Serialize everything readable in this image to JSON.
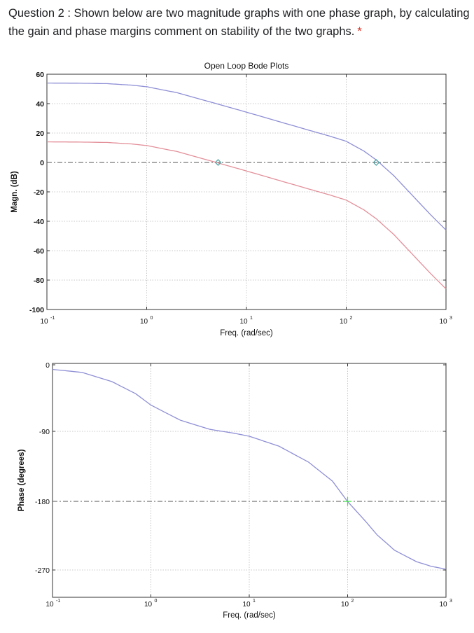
{
  "question": {
    "text": "Question 2 : Shown below are two magnitude graphs with one phase graph, by calculating the gain and phase margins comment on stability of the two graphs.",
    "required_mark": "*"
  },
  "colors": {
    "blue_curve": "#8f8fd6",
    "red_curve": "#e3909a",
    "marker": "#4aa0a0",
    "green_marker": "#33ee33",
    "grid": "#c8c8c8"
  },
  "chart_data": [
    {
      "type": "line",
      "title": "Open Loop Bode Plots",
      "xlabel": "Freq. (rad/sec)",
      "ylabel": "Magn. (dB)",
      "xscale": "log",
      "xlim": [
        0.1,
        1000
      ],
      "ylim": [
        -100,
        60
      ],
      "xticks": [
        {
          "value": 0.1,
          "base": "10",
          "exp": "-1"
        },
        {
          "value": 1,
          "base": "10",
          "exp": "0"
        },
        {
          "value": 10,
          "base": "10",
          "exp": "1"
        },
        {
          "value": 100,
          "base": "10",
          "exp": "2"
        },
        {
          "value": 1000,
          "base": "10",
          "exp": "3"
        }
      ],
      "yticks": [
        "60",
        "40",
        "20",
        "0",
        "-20",
        "-40",
        "-60",
        "-80",
        "-100"
      ],
      "ytick_values": [
        60,
        40,
        20,
        0,
        -20,
        -40,
        -60,
        -80,
        -100
      ],
      "grid": true,
      "reference_line": 0,
      "series": [
        {
          "color_key": "blue_curve",
          "x": [
            0.1,
            0.2,
            0.4,
            0.7,
            1,
            2,
            4,
            7,
            10,
            20,
            40,
            70,
            100,
            150,
            200,
            300,
            500,
            700,
            1000
          ],
          "y": [
            54,
            53.9,
            53.6,
            52.6,
            51.5,
            47.5,
            41.8,
            37.2,
            34.2,
            28.3,
            22.4,
            17.7,
            14.4,
            7.8,
            1.7,
            -9,
            -25,
            -35.5,
            -46
          ]
        },
        {
          "color_key": "red_curve",
          "x": [
            0.1,
            0.2,
            0.4,
            0.7,
            1,
            2,
            4,
            7,
            10,
            20,
            40,
            70,
            100,
            150,
            200,
            300,
            500,
            700,
            1000
          ],
          "y": [
            14,
            13.9,
            13.6,
            12.6,
            11.5,
            7.5,
            1.8,
            -2.8,
            -5.8,
            -11.7,
            -17.6,
            -22.3,
            -25.6,
            -32.2,
            -38.3,
            -49,
            -65,
            -75.5,
            -86
          ]
        }
      ],
      "markers": [
        {
          "x": 5.2,
          "y": 0,
          "color_key": "marker"
        },
        {
          "x": 200,
          "y": 0,
          "color_key": "marker"
        }
      ]
    },
    {
      "type": "line",
      "title": "",
      "xlabel": "Freq. (rad/sec)",
      "ylabel": "Phase (degrees)",
      "xscale": "log",
      "xlim": [
        0.1,
        1000
      ],
      "ylim": [
        -300,
        0
      ],
      "xticks": [
        {
          "value": 0.1,
          "base": "10",
          "exp": "-1"
        },
        {
          "value": 1,
          "base": "10",
          "exp": "0"
        },
        {
          "value": 10,
          "base": "10",
          "exp": "1"
        },
        {
          "value": 100,
          "base": "10",
          "exp": "2"
        },
        {
          "value": 1000,
          "base": "10",
          "exp": "3"
        }
      ],
      "yticks": [
        "0",
        "-90",
        "-180",
        "-270"
      ],
      "ytick_values": [
        0,
        -90,
        -180,
        -270
      ],
      "grid": true,
      "reference_line": -180,
      "series": [
        {
          "color_key": "blue_curve",
          "x": [
            0.1,
            0.2,
            0.4,
            0.7,
            1,
            2,
            4,
            7,
            10,
            20,
            40,
            70,
            100,
            150,
            200,
            300,
            500,
            700,
            1000
          ],
          "y": [
            -6,
            -10,
            -22,
            -38,
            -53,
            -73,
            -85,
            -90,
            -94,
            -107,
            -128,
            -153,
            -180,
            -205,
            -224,
            -244,
            -259,
            -265,
            -269
          ]
        }
      ],
      "markers": [
        {
          "x": 100,
          "y": -180,
          "color_key": "green_marker"
        }
      ]
    }
  ]
}
